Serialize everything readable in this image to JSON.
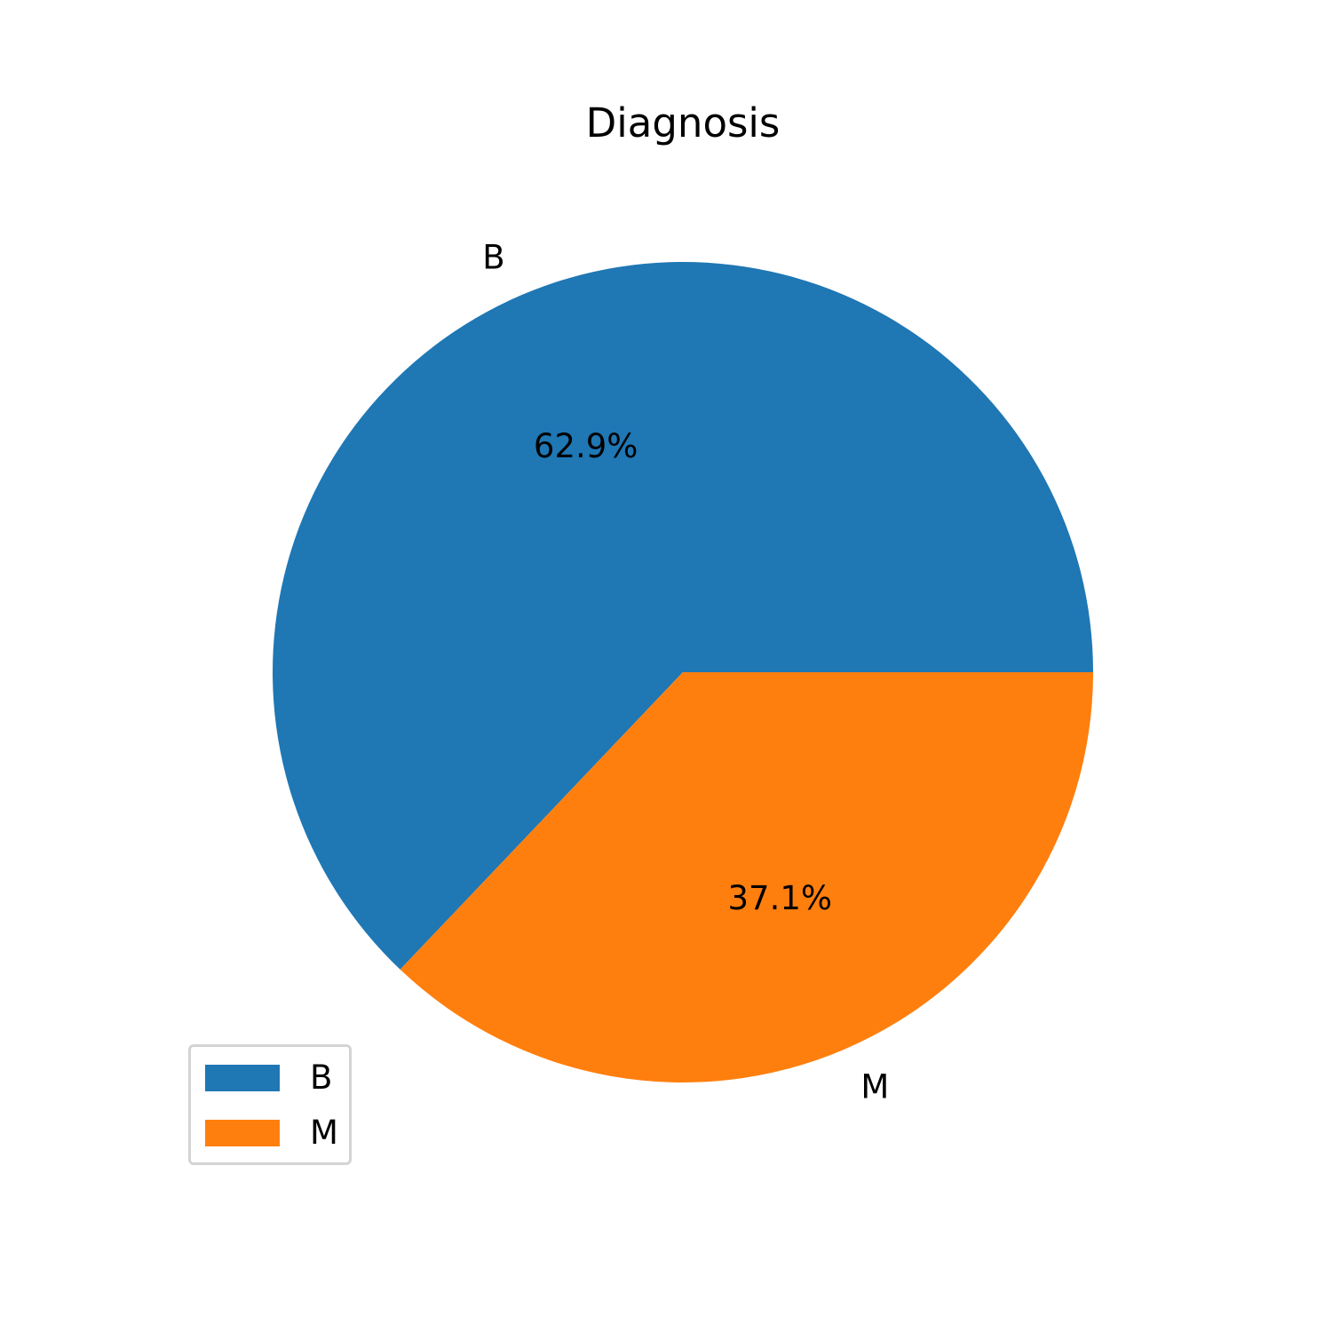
{
  "chart_data": {
    "type": "pie",
    "title": "Diagnosis",
    "categories": [
      "B",
      "M"
    ],
    "values": [
      62.9,
      37.1
    ],
    "value_labels": [
      "62.9%",
      "37.1%"
    ],
    "colors": [
      "#1f77b4",
      "#ff7f0e"
    ],
    "start_angle_deg": 0,
    "direction": "counterclockwise",
    "legend": {
      "placement": "lower-left",
      "entries": [
        "B",
        "M"
      ]
    }
  }
}
